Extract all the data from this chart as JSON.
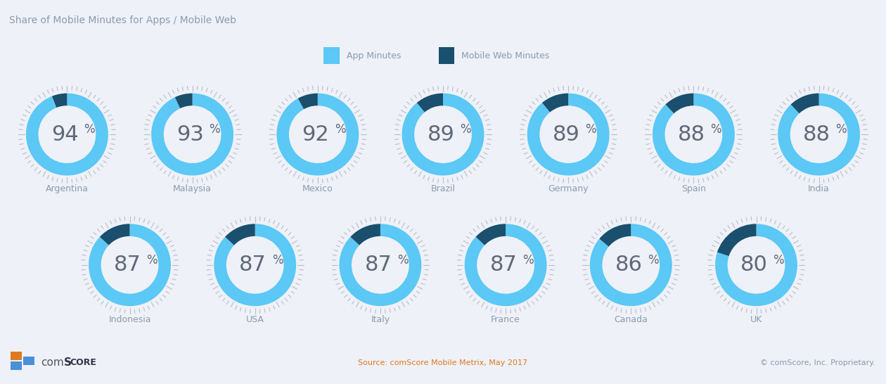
{
  "title": "Share of Mobile Minutes for Apps / Mobile Web",
  "legend_app": "App Minutes",
  "legend_web": "Mobile Web Minutes",
  "app_color": "#5BC8F5",
  "web_color": "#1A4F6E",
  "bg_color": "#EEF1F7",
  "text_color": "#8A9BB0",
  "source_color": "#E07820",
  "source_text": "Source: comScore Mobile Metrix, May 2017",
  "copyright_text": "© comScore, Inc. Proprietary.",
  "row1": [
    {
      "country": "Argentina",
      "app_pct": 94
    },
    {
      "country": "Malaysia",
      "app_pct": 93
    },
    {
      "country": "Mexico",
      "app_pct": 92
    },
    {
      "country": "Brazil",
      "app_pct": 89
    },
    {
      "country": "Germany",
      "app_pct": 89
    },
    {
      "country": "Spain",
      "app_pct": 88
    },
    {
      "country": "India",
      "app_pct": 88
    }
  ],
  "row2": [
    {
      "country": "Indonesia",
      "app_pct": 87
    },
    {
      "country": "USA",
      "app_pct": 87
    },
    {
      "country": "Italy",
      "app_pct": 87
    },
    {
      "country": "France",
      "app_pct": 87
    },
    {
      "country": "Canada",
      "app_pct": 86
    },
    {
      "country": "UK",
      "app_pct": 80
    }
  ]
}
